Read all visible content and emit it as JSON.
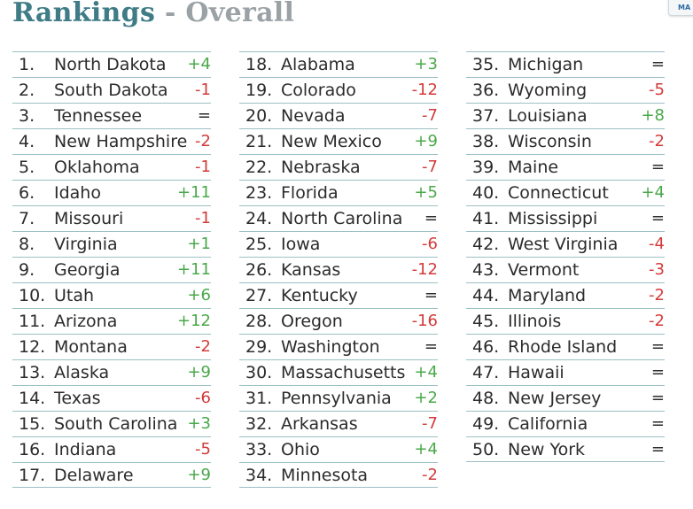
{
  "header": {
    "title_main": "Rankings",
    "title_sep": "-",
    "title_sub": "Overall"
  },
  "corner_button": {
    "label": "MA"
  },
  "colors": {
    "up": "#4aa84a",
    "down": "#d33a3a",
    "same": "#2b2b2b",
    "title": "#3f7c86",
    "subtitle": "#9aa2a6",
    "rule": "#9cc0c4"
  },
  "rankings": [
    {
      "rank": "1.",
      "name": "North Dakota",
      "change": "+4"
    },
    {
      "rank": "2.",
      "name": "South Dakota",
      "change": "-1"
    },
    {
      "rank": "3.",
      "name": "Tennessee",
      "change": "="
    },
    {
      "rank": "4.",
      "name": "New Hampshire",
      "change": "-2"
    },
    {
      "rank": "5.",
      "name": "Oklahoma",
      "change": "-1"
    },
    {
      "rank": "6.",
      "name": "Idaho",
      "change": "+11"
    },
    {
      "rank": "7.",
      "name": "Missouri",
      "change": "-1"
    },
    {
      "rank": "8.",
      "name": "Virginia",
      "change": "+1"
    },
    {
      "rank": "9.",
      "name": "Georgia",
      "change": "+11"
    },
    {
      "rank": "10.",
      "name": "Utah",
      "change": "+6"
    },
    {
      "rank": "11.",
      "name": "Arizona",
      "change": "+12"
    },
    {
      "rank": "12.",
      "name": "Montana",
      "change": "-2"
    },
    {
      "rank": "13.",
      "name": "Alaska",
      "change": "+9"
    },
    {
      "rank": "14.",
      "name": "Texas",
      "change": "-6"
    },
    {
      "rank": "15.",
      "name": "South Carolina",
      "change": "+3"
    },
    {
      "rank": "16.",
      "name": "Indiana",
      "change": "-5"
    },
    {
      "rank": "17.",
      "name": "Delaware",
      "change": "+9"
    },
    {
      "rank": "18.",
      "name": "Alabama",
      "change": "+3"
    },
    {
      "rank": "19.",
      "name": "Colorado",
      "change": "-12"
    },
    {
      "rank": "20.",
      "name": "Nevada",
      "change": "-7"
    },
    {
      "rank": "21.",
      "name": "New Mexico",
      "change": "+9"
    },
    {
      "rank": "22.",
      "name": "Nebraska",
      "change": "-7"
    },
    {
      "rank": "23.",
      "name": "Florida",
      "change": "+5"
    },
    {
      "rank": "24.",
      "name": "North Carolina",
      "change": "="
    },
    {
      "rank": "25.",
      "name": "Iowa",
      "change": "-6"
    },
    {
      "rank": "26.",
      "name": "Kansas",
      "change": "-12"
    },
    {
      "rank": "27.",
      "name": "Kentucky",
      "change": "="
    },
    {
      "rank": "28.",
      "name": "Oregon",
      "change": "-16"
    },
    {
      "rank": "29.",
      "name": "Washington",
      "change": "="
    },
    {
      "rank": "30.",
      "name": "Massachusetts",
      "change": "+4"
    },
    {
      "rank": "31.",
      "name": "Pennsylvania",
      "change": "+2"
    },
    {
      "rank": "32.",
      "name": "Arkansas",
      "change": "-7"
    },
    {
      "rank": "33.",
      "name": "Ohio",
      "change": "+4"
    },
    {
      "rank": "34.",
      "name": "Minnesota",
      "change": "-2"
    },
    {
      "rank": "35.",
      "name": "Michigan",
      "change": "="
    },
    {
      "rank": "36.",
      "name": "Wyoming",
      "change": "-5"
    },
    {
      "rank": "37.",
      "name": "Louisiana",
      "change": "+8"
    },
    {
      "rank": "38.",
      "name": "Wisconsin",
      "change": "-2"
    },
    {
      "rank": "39.",
      "name": "Maine",
      "change": "="
    },
    {
      "rank": "40.",
      "name": "Connecticut",
      "change": "+4"
    },
    {
      "rank": "41.",
      "name": "Mississippi",
      "change": "="
    },
    {
      "rank": "42.",
      "name": "West Virginia",
      "change": "-4"
    },
    {
      "rank": "43.",
      "name": "Vermont",
      "change": "-3"
    },
    {
      "rank": "44.",
      "name": "Maryland",
      "change": "-2"
    },
    {
      "rank": "45.",
      "name": "Illinois",
      "change": "-2"
    },
    {
      "rank": "46.",
      "name": "Rhode Island",
      "change": "="
    },
    {
      "rank": "47.",
      "name": "Hawaii",
      "change": "="
    },
    {
      "rank": "48.",
      "name": "New Jersey",
      "change": "="
    },
    {
      "rank": "49.",
      "name": "California",
      "change": "="
    },
    {
      "rank": "50.",
      "name": "New York",
      "change": "="
    }
  ]
}
